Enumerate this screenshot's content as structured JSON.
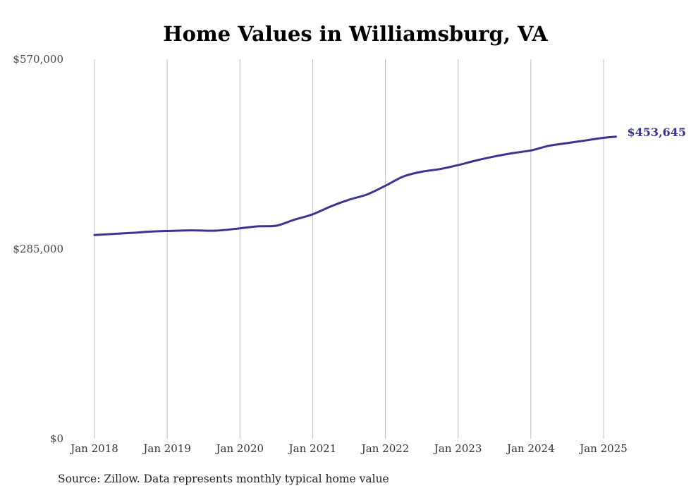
{
  "chart_data": {
    "type": "line",
    "title": "Home Values in Williamsburg, VA",
    "xlabel": "",
    "ylabel": "",
    "ylim": [
      0,
      570000
    ],
    "y_ticks": [
      "$0",
      "$285,000",
      "$570,000"
    ],
    "y_tick_values": [
      0,
      285000,
      570000
    ],
    "x_tick_labels": [
      "Jan 2018",
      "Jan 2019",
      "Jan 2020",
      "Jan 2021",
      "Jan 2022",
      "Jan 2023",
      "Jan 2024",
      "Jan 2025"
    ],
    "x_tick_values": [
      2018.0,
      2019.0,
      2020.0,
      2021.0,
      2022.0,
      2023.0,
      2024.0,
      2025.0
    ],
    "grid": "vertical",
    "line_color": "#3a3491",
    "end_label": "$453,645",
    "series": [
      {
        "x": [
          2018.0,
          2018.5,
          2018.75,
          2019.0,
          2019.33,
          2019.67,
          2020.0,
          2020.25,
          2020.5,
          2020.75,
          2021.0,
          2021.25,
          2021.5,
          2021.75,
          2022.0,
          2022.25,
          2022.5,
          2022.75,
          2023.0,
          2023.25,
          2023.5,
          2023.75,
          2024.0,
          2024.25,
          2024.5,
          2024.75,
          2025.0,
          2025.17
        ],
        "values": [
          306000,
          309000,
          311000,
          312000,
          313000,
          312500,
          316000,
          319000,
          320000,
          329000,
          337000,
          349000,
          359000,
          367000,
          380000,
          394000,
          401000,
          405000,
          411000,
          418000,
          424000,
          429000,
          433000,
          440000,
          444000,
          448000,
          452000,
          453645
        ]
      }
    ]
  },
  "source_note": "Source: Zillow. Data represents monthly typical home value"
}
